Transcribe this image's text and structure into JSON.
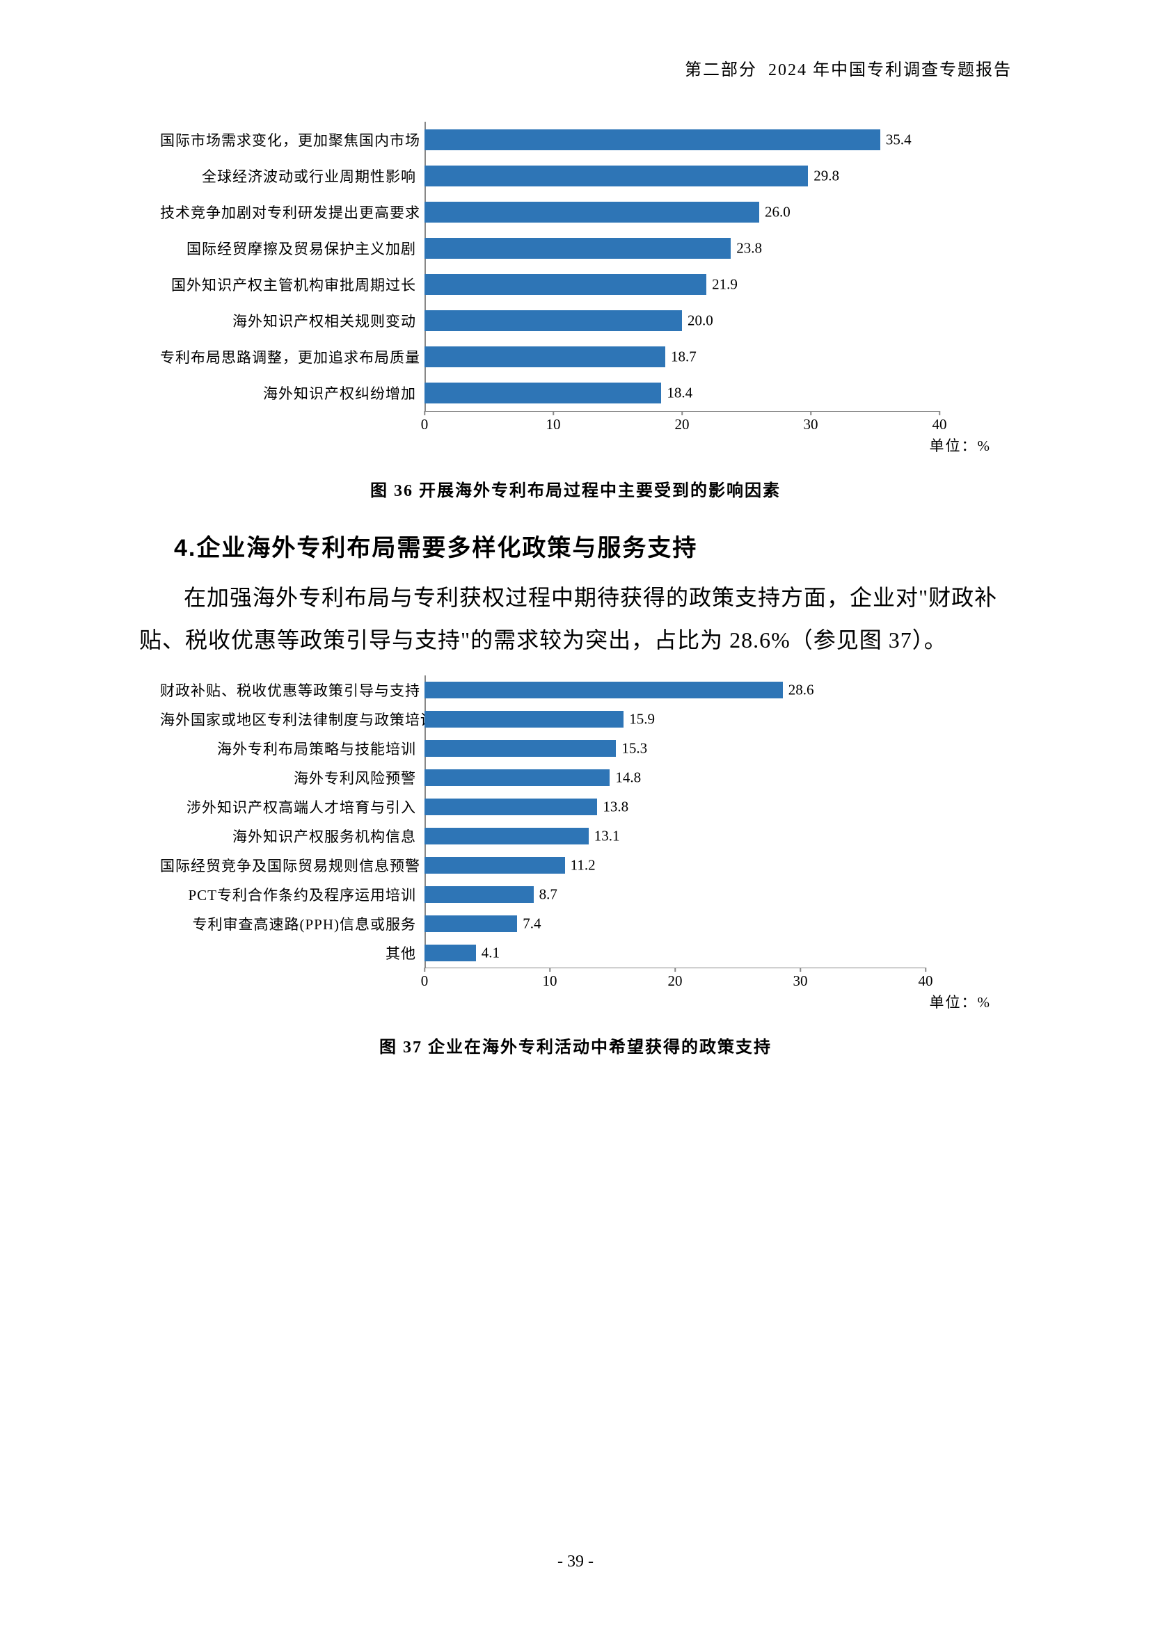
{
  "header": {
    "section": "第二部分",
    "title": "2024 年中国专利调查专题报告"
  },
  "chart36": {
    "type": "bar",
    "categories": [
      "国际市场需求变化，更加聚焦国内市场",
      "全球经济波动或行业周期性影响",
      "技术竞争加剧对专利研发提出更高要求",
      "国际经贸摩擦及贸易保护主义加剧",
      "国外知识产权主管机构审批周期过长",
      "海外知识产权相关规则变动",
      "专利布局思路调整，更加追求布局质量",
      "海外知识产权纠纷增加"
    ],
    "values": [
      35.4,
      29.8,
      26.0,
      23.8,
      21.9,
      20.0,
      18.7,
      18.4
    ],
    "value_labels": [
      "35.4",
      "29.8",
      "26.0",
      "23.8",
      "21.9",
      "20.0",
      "18.7",
      "18.4"
    ],
    "bar_color": "#2e75b6",
    "xlim": [
      0,
      40
    ],
    "xtick_step": 10,
    "xticks": [
      "0",
      "10",
      "20",
      "30",
      "40"
    ],
    "unit_label": "单位：%",
    "caption": "图 36  开展海外专利布局过程中主要受到的影响因素"
  },
  "section_heading": "4.企业海外专利布局需要多样化政策与服务支持",
  "body_text": "在加强海外专利布局与专利获权过程中期待获得的政策支持方面，企业对\"财政补贴、税收优惠等政策引导与支持\"的需求较为突出，占比为 28.6%（参见图 37）。",
  "chart37": {
    "type": "bar",
    "categories": [
      "财政补贴、税收优惠等政策引导与支持",
      "海外国家或地区专利法律制度与政策培训",
      "海外专利布局策略与技能培训",
      "海外专利风险预警",
      "涉外知识产权高端人才培育与引入",
      "海外知识产权服务机构信息",
      "国际经贸竞争及国际贸易规则信息预警",
      "PCT专利合作条约及程序运用培训",
      "专利审查高速路(PPH)信息或服务",
      "其他"
    ],
    "values": [
      28.6,
      15.9,
      15.3,
      14.8,
      13.8,
      13.1,
      11.2,
      8.7,
      7.4,
      4.1
    ],
    "value_labels": [
      "28.6",
      "15.9",
      "15.3",
      "14.8",
      "13.8",
      "13.1",
      "11.2",
      "8.7",
      "7.4",
      "4.1"
    ],
    "bar_color": "#2e75b6",
    "xlim": [
      0,
      40
    ],
    "xtick_step": 10,
    "xticks": [
      "0",
      "10",
      "20",
      "30",
      "40"
    ],
    "unit_label": "单位：%",
    "caption": "图 37  企业在海外专利活动中希望获得的政策支持"
  },
  "page_number": "- 39 -"
}
